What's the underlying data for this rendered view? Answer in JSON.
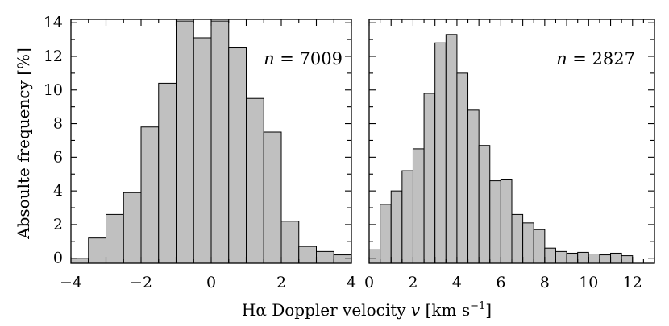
{
  "ylabel": "Absoulte frequency   [%]",
  "xlabel_html": "Hα Doppler velocity v   [km s⁻¹]",
  "xlabel_parts": {
    "main": "Hα Doppler velocity ",
    "var": "v",
    "unit": "   [km s",
    "exp": "−1",
    "close": "]"
  },
  "chart_data": [
    {
      "type": "bar",
      "annotation": "n = 7009",
      "annotation_parts": {
        "var": "n",
        "rest": " = 7009"
      },
      "xlim": [
        -4,
        4
      ],
      "ylim": [
        -0.3,
        14.2
      ],
      "xticks": [
        "−4",
        "−2",
        "0",
        "2",
        "4"
      ],
      "xtick_values": [
        -4,
        -2,
        0,
        2,
        4
      ],
      "yticks": [
        "0",
        "2",
        "4",
        "6",
        "8",
        "10",
        "12",
        "14"
      ],
      "ytick_values": [
        0,
        2,
        4,
        6,
        8,
        10,
        12,
        14
      ],
      "bin_width": 0.5,
      "bin_starts": [
        -4.0,
        -3.5,
        -3.0,
        -2.5,
        -2.0,
        -1.5,
        -1.0,
        -0.5,
        0.0,
        0.5,
        1.0,
        1.5,
        2.0,
        2.5,
        3.0,
        3.5
      ],
      "values": [
        0.0,
        1.2,
        2.6,
        3.9,
        7.8,
        10.4,
        14.1,
        13.1,
        14.1,
        12.5,
        9.5,
        7.5,
        2.2,
        0.7,
        0.4,
        0.2
      ]
    },
    {
      "type": "bar",
      "annotation": "n = 2827",
      "annotation_parts": {
        "var": "n",
        "rest": " = 2827"
      },
      "xlim": [
        0,
        13
      ],
      "ylim": [
        -0.3,
        14.2
      ],
      "xticks": [
        "0",
        "2",
        "4",
        "6",
        "8",
        "10",
        "12"
      ],
      "xtick_values": [
        0,
        2,
        4,
        6,
        8,
        10,
        12
      ],
      "yticks": [],
      "ytick_values": [
        0,
        2,
        4,
        6,
        8,
        10,
        12,
        14
      ],
      "bin_width": 0.5,
      "bin_starts": [
        0.0,
        0.5,
        1.0,
        1.5,
        2.0,
        2.5,
        3.0,
        3.5,
        4.0,
        4.5,
        5.0,
        5.5,
        6.0,
        6.5,
        7.0,
        7.5,
        8.0,
        8.5,
        9.0,
        9.5,
        10.0,
        10.5,
        11.0,
        11.5
      ],
      "values": [
        0.5,
        3.2,
        4.0,
        5.2,
        6.5,
        9.8,
        12.8,
        13.3,
        11.0,
        8.8,
        6.7,
        4.6,
        4.7,
        2.6,
        2.1,
        1.7,
        0.6,
        0.4,
        0.3,
        0.35,
        0.25,
        0.2,
        0.3,
        0.15
      ]
    }
  ]
}
